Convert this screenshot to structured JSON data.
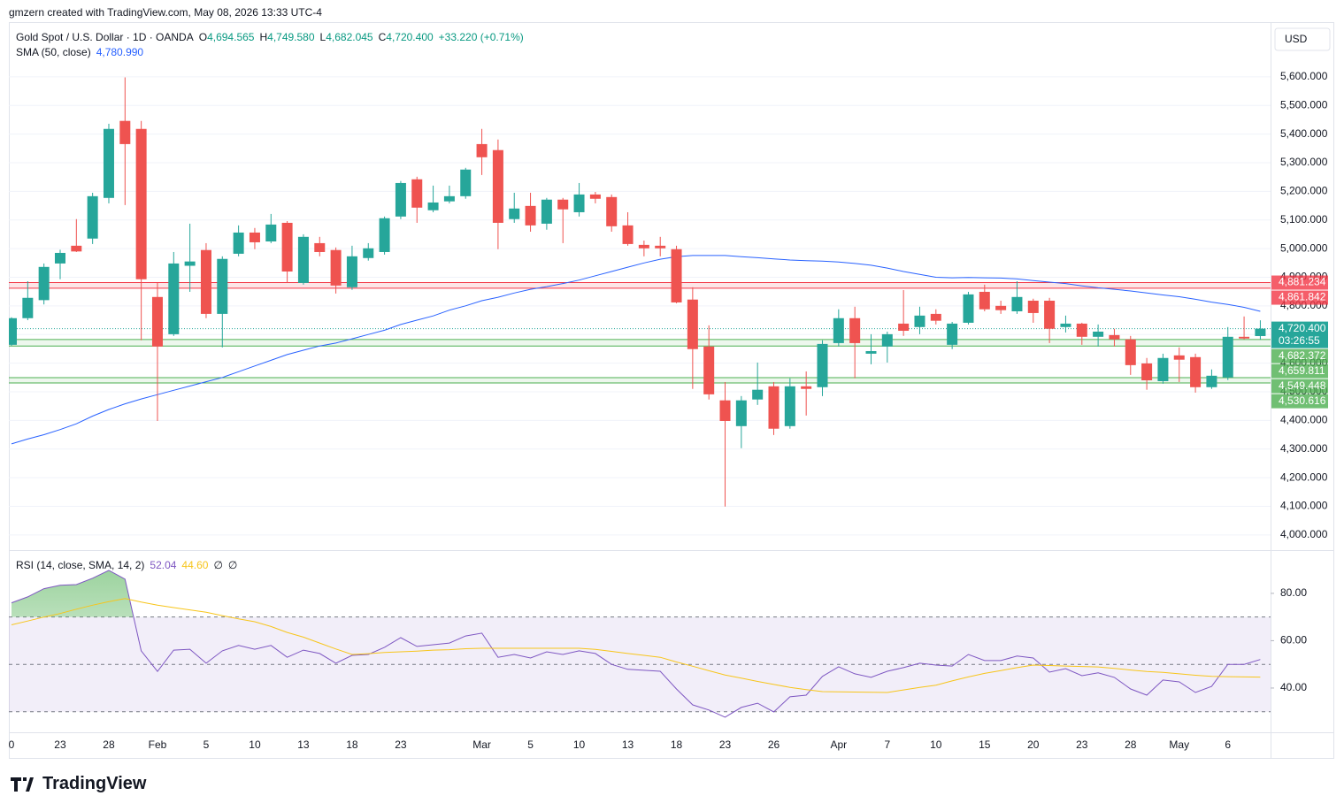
{
  "header": "gmzern created with TradingView.com, May 08, 2026 13:33 UTC-4",
  "footer_logo": "TradingView",
  "chart_data": [
    {
      "type": "candlestick",
      "title": "Gold Spot / U.S. Dollar · 1D · OANDA",
      "legend_ohlc": [
        {
          "key": "O",
          "value": "4,694.565"
        },
        {
          "key": "H",
          "value": "4,749.580"
        },
        {
          "key": "L",
          "value": "4,682.045"
        },
        {
          "key": "C",
          "value": "4,720.400"
        }
      ],
      "change": "+33.220 (+0.71%)",
      "currency": "USD",
      "up_color": "#26a69a",
      "down_color": "#ef5350",
      "categories": [
        "0",
        null,
        null,
        "23",
        null,
        null,
        "28",
        null,
        null,
        "Feb",
        null,
        null,
        "5",
        null,
        null,
        "10",
        null,
        null,
        "13",
        null,
        null,
        "18",
        null,
        null,
        "23",
        null,
        null,
        null,
        null,
        "Mar",
        null,
        null,
        "5",
        null,
        null,
        "10",
        null,
        null,
        "13",
        null,
        null,
        "18",
        null,
        null,
        "23",
        null,
        null,
        "26",
        null,
        null,
        null,
        "Apr",
        null,
        null,
        "7",
        null,
        null,
        "10",
        null,
        null,
        "15",
        null,
        null,
        "20",
        null,
        null,
        "23",
        null,
        null,
        "28",
        null,
        null,
        "May",
        null,
        null,
        "6",
        null,
        null
      ],
      "open": [
        4664,
        4757,
        4820,
        4948,
        5010,
        5035,
        5177,
        5446,
        5418,
        4831,
        4701,
        4940,
        4995,
        4772,
        4982,
        5056,
        5025,
        5090,
        4880,
        5019,
        4995,
        4865,
        4967,
        4988,
        5112,
        5242,
        5134,
        5165,
        5183,
        5365,
        5344,
        5103,
        5149,
        5087,
        5171,
        5127,
        5189,
        5180,
        5081,
        5013,
        5010,
        4998,
        4822,
        4658,
        4470,
        4380,
        4473,
        4519,
        4380,
        4519,
        4516,
        4670,
        4757,
        4633,
        4658,
        4738,
        4726,
        4772,
        4664,
        4741,
        4849,
        4800,
        4781,
        4818,
        4818,
        4726,
        4738,
        4692,
        4698,
        4683,
        4599,
        4537,
        4627,
        4621,
        4516,
        4550,
        4692,
        4694.565
      ],
      "high": [
        4760,
        4886,
        4948,
        4996,
        5103,
        5195,
        5436,
        5598,
        5446,
        4880,
        4988,
        5087,
        5019,
        4973,
        5081,
        5072,
        5121,
        5096,
        5050,
        5041,
        5004,
        5010,
        5019,
        5112,
        5236,
        5251,
        5220,
        5220,
        5282,
        5418,
        5381,
        5195,
        5195,
        5177,
        5177,
        5229,
        5198,
        5189,
        5127,
        5028,
        5041,
        5010,
        4865,
        4732,
        4534,
        4485,
        4602,
        4534,
        4547,
        4571,
        4680,
        4788,
        4797,
        4701,
        4710,
        4855,
        4797,
        4788,
        4744,
        4849,
        4874,
        4818,
        4886,
        4825,
        4828,
        4766,
        4741,
        4735,
        4720,
        4695,
        4618,
        4633,
        4655,
        4633,
        4578,
        4726,
        4763,
        4749.58
      ],
      "low": [
        4660,
        4750,
        4805,
        4893,
        4988,
        5016,
        5158,
        5152,
        4680,
        4398,
        4695,
        4849,
        4757,
        4655,
        4973,
        4998,
        5019,
        4880,
        4874,
        4973,
        4843,
        4856,
        4958,
        4979,
        5103,
        5090,
        5127,
        5158,
        5174,
        5257,
        4998,
        5090,
        5059,
        5066,
        5019,
        5112,
        5158,
        5059,
        5010,
        4973,
        4973,
        4809,
        4510,
        4473,
        4099,
        4303,
        4454,
        4349,
        4371,
        4417,
        4485,
        4658,
        4547,
        4596,
        4602,
        4695,
        4701,
        4735,
        4649,
        4735,
        4781,
        4772,
        4772,
        4741,
        4670,
        4707,
        4664,
        4658,
        4658,
        4559,
        4507,
        4528,
        4534,
        4497,
        4510,
        4541,
        4683,
        4682.045
      ],
      "close": [
        4757,
        4828,
        4936,
        4985,
        4990,
        5183,
        5418,
        5365,
        4893,
        4658,
        4948,
        4955,
        4772,
        4964,
        5056,
        5022,
        5084,
        4920,
        5041,
        4988,
        4871,
        4973,
        5001,
        5106,
        5229,
        5143,
        5161,
        5183,
        5276,
        5319,
        5090,
        5140,
        5081,
        5171,
        5137,
        5189,
        5174,
        5078,
        5016,
        5001,
        5001,
        4812,
        4649,
        4491,
        4398,
        4470,
        4507,
        4371,
        4519,
        4510,
        4667,
        4757,
        4670,
        4642,
        4701,
        4713,
        4766,
        4748,
        4738,
        4840,
        4788,
        4785,
        4831,
        4775,
        4720,
        4738,
        4692,
        4710,
        4683,
        4593,
        4540,
        4618,
        4612,
        4516,
        4556,
        4692,
        4686,
        4720.4
      ],
      "overlays": [
        {
          "name": "SMA (50, close)",
          "color": "#2962ff",
          "last_label": "4,780.990",
          "values": [
            4318,
            4335,
            4350,
            4368,
            4388,
            4415,
            4438,
            4458,
            4475,
            4490,
            4505,
            4520,
            4535,
            4550,
            4570,
            4590,
            4610,
            4630,
            4645,
            4660,
            4670,
            4685,
            4700,
            4715,
            4735,
            4750,
            4765,
            4785,
            4800,
            4818,
            4830,
            4845,
            4858,
            4867,
            4878,
            4890,
            4905,
            4920,
            4935,
            4950,
            4963,
            4972,
            4976,
            4976,
            4976,
            4972,
            4968,
            4964,
            4960,
            4958,
            4956,
            4953,
            4948,
            4942,
            4932,
            4920,
            4910,
            4900,
            4898,
            4899,
            4898,
            4897,
            4894,
            4888,
            4883,
            4878,
            4870,
            4863,
            4858,
            4852,
            4845,
            4838,
            4832,
            4823,
            4813,
            4805,
            4795,
            4780.99
          ]
        }
      ],
      "ylim": [
        3947,
        5791
      ],
      "yticks": [
        {
          "value": 4000,
          "label": "4,000.000"
        },
        {
          "value": 4100,
          "label": "4,100.000"
        },
        {
          "value": 4200,
          "label": "4,200.000"
        },
        {
          "value": 4300,
          "label": "4,300.000"
        },
        {
          "value": 4400,
          "label": "4,400.000"
        },
        {
          "value": 4500,
          "label": "4,500.000"
        },
        {
          "value": 4600,
          "label": "4,600.000"
        },
        {
          "value": 4700,
          "label": "4,700.000"
        },
        {
          "value": 4800,
          "label": "4,800.000"
        },
        {
          "value": 4900,
          "label": "4,900.000"
        },
        {
          "value": 5000,
          "label": "5,000.000"
        },
        {
          "value": 5100,
          "label": "5,100.000"
        },
        {
          "value": 5200,
          "label": "5,200.000"
        },
        {
          "value": 5300,
          "label": "5,300.000"
        },
        {
          "value": 5400,
          "label": "5,400.000"
        },
        {
          "value": 5500,
          "label": "5,500.000"
        },
        {
          "value": 5600,
          "label": "5,600.000"
        }
      ],
      "grid": true,
      "zones": [
        {
          "color": "#f23645",
          "fill": "rgba(242,54,69,0.13)",
          "levels": [
            {
              "value": 4881.234,
              "label": "4,881.234"
            },
            {
              "value": 4861.842,
              "label": "4,861.842"
            }
          ]
        },
        {
          "color": "#4caf50",
          "fill": "rgba(76,175,80,0.10)",
          "levels": [
            {
              "value": 4682.372,
              "label": "4,682.372"
            },
            {
              "value": 4659.811,
              "label": "4,659.811"
            }
          ]
        },
        {
          "color": "#4caf50",
          "fill": "rgba(76,175,80,0.10)",
          "levels": [
            {
              "value": 4549.448,
              "label": "4,549.448"
            },
            {
              "value": 4530.616,
              "label": "4,530.616"
            }
          ]
        }
      ],
      "current": {
        "value": 4720.4,
        "label": "4,720.400",
        "countdown": "03:26:55",
        "color": "#26a69a"
      }
    },
    {
      "type": "line",
      "title": "RSI (14, close, SMA, 14, 2)",
      "series": [
        {
          "color": "#7e57c2",
          "last_label": "52.04",
          "values": [
            76,
            78.5,
            82,
            83.4,
            83.7,
            86.4,
            89.7,
            86,
            55.7,
            47,
            56,
            56.4,
            50.5,
            55.7,
            58,
            56.4,
            58,
            53,
            56,
            54.6,
            50.5,
            53.8,
            54.2,
            57.2,
            61.3,
            57.6,
            58.3,
            59,
            62,
            63.2,
            53,
            54.2,
            52.7,
            55.3,
            54.2,
            55.7,
            54.6,
            50,
            47.9,
            47.5,
            47.1,
            39.6,
            32.9,
            30.7,
            27.7,
            31.8,
            33.6,
            29.9,
            36.3,
            37,
            44.9,
            49,
            46,
            44.5,
            47.1,
            48.6,
            50.5,
            49.7,
            49.3,
            54.2,
            51.6,
            51.6,
            53.5,
            52.7,
            46.7,
            48.2,
            45.2,
            46.4,
            44.5,
            39.6,
            37,
            43.4,
            42.6,
            38.1,
            40.7,
            50,
            50,
            52.04
          ]
        },
        {
          "color": "#f7c51b",
          "last_label": "44.60",
          "values": [
            66.7,
            68.3,
            70,
            71.5,
            73.3,
            75,
            76.5,
            77.8,
            76.3,
            75,
            74,
            73,
            72,
            70.6,
            69.2,
            68,
            66,
            63.5,
            61.5,
            59,
            56.5,
            54.2,
            54.5,
            55,
            55.3,
            55.6,
            56,
            56.2,
            56.6,
            56.8,
            56.8,
            56.8,
            56.8,
            56.8,
            56.8,
            56.8,
            56.3,
            55.5,
            54.6,
            53.8,
            53,
            51,
            49.2,
            47.3,
            45.5,
            44.2,
            42.8,
            41.5,
            40.3,
            39.3,
            38.5,
            38.4,
            38.3,
            38.2,
            38.1,
            39.2,
            40.3,
            41.2,
            43,
            44.7,
            46.2,
            47.4,
            48.6,
            49.7,
            49.5,
            49.3,
            49.1,
            48.9,
            48.3,
            47.6,
            47,
            46.6,
            46,
            45.4,
            44.9,
            44.8,
            44.7,
            44.6
          ]
        }
      ],
      "na_labels": [
        "∅",
        "∅"
      ],
      "ylim": [
        21.3,
        97.9
      ],
      "yticks": [
        {
          "value": 40,
          "label": "40.00"
        },
        {
          "value": 60,
          "label": "60.00"
        },
        {
          "value": 80,
          "label": "80.00"
        }
      ],
      "band": [
        30,
        70
      ],
      "hlines": [
        70,
        50,
        30
      ],
      "overbought_color": "#4caf50"
    }
  ]
}
